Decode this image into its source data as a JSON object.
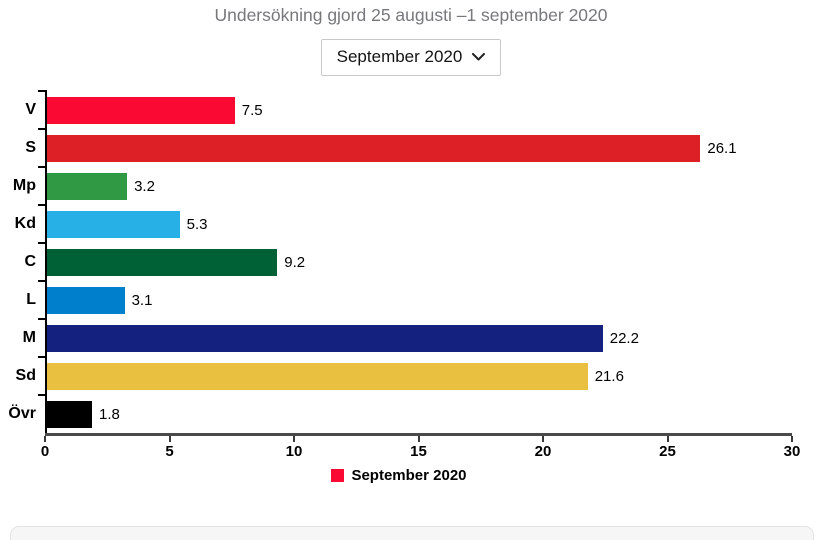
{
  "header": {
    "title": "Undersökning gjord 25 augusti –1 september 2020",
    "dropdown": {
      "selected": "September 2020"
    }
  },
  "chart_data": {
    "type": "bar",
    "orientation": "horizontal",
    "categories": [
      "V",
      "S",
      "Mp",
      "Kd",
      "C",
      "L",
      "M",
      "Sd",
      "Övr"
    ],
    "values": [
      7.5,
      26.1,
      3.2,
      5.3,
      9.2,
      3.1,
      22.2,
      21.6,
      1.8
    ],
    "display_values": [
      "7.5",
      "26.1",
      "3.2",
      "5.3",
      "9.2",
      "3.1",
      "22.2",
      "21.6",
      "1.8"
    ],
    "bar_colors": [
      "#FA0A33",
      "#DD2025",
      "#2F9A43",
      "#27B0E5",
      "#006137",
      "#0080CC",
      "#15217E",
      "#E9C03F",
      "#000000"
    ],
    "xlim": [
      0,
      30
    ],
    "x_ticks": [
      "0",
      "5",
      "10",
      "15",
      "20",
      "25",
      "30"
    ],
    "grid": false,
    "value_labels_shown": true,
    "legend": {
      "label": "September 2020",
      "color": "#FA0A33",
      "position": "bottom"
    },
    "axis_color": "#4a4a4a"
  }
}
